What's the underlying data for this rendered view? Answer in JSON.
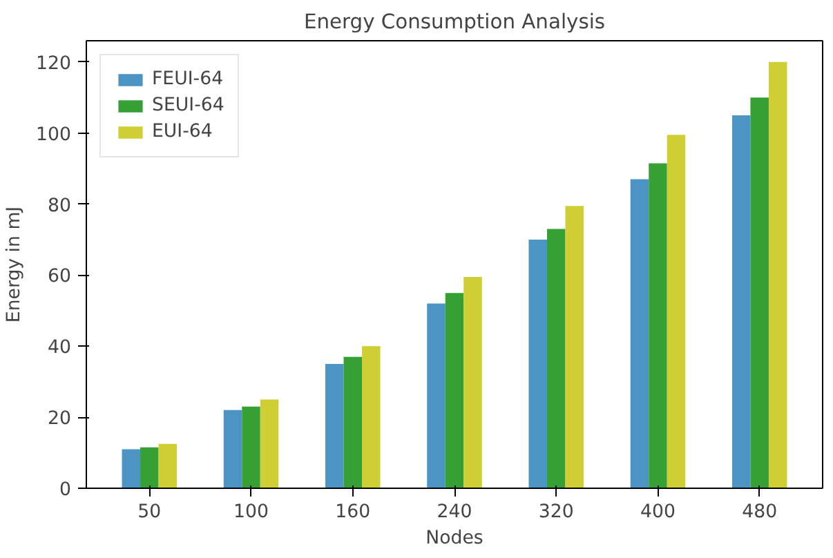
{
  "chart_data": {
    "type": "bar",
    "title": "Energy Consumption Analysis",
    "xlabel": "Nodes",
    "ylabel": "Energy in mJ",
    "categories": [
      "50",
      "100",
      "160",
      "240",
      "320",
      "400",
      "480"
    ],
    "series": [
      {
        "name": "FEUI-64",
        "color": "#4b94c4",
        "values": [
          11,
          22,
          35,
          52,
          70,
          87,
          105
        ]
      },
      {
        "name": "SEUI-64",
        "color": "#36a035",
        "values": [
          11.5,
          23,
          37,
          55,
          73,
          91.5,
          110
        ]
      },
      {
        "name": "EUI-64",
        "color": "#cfcf35",
        "values": [
          12.5,
          25,
          40,
          59.5,
          79.5,
          99.5,
          120
        ]
      }
    ],
    "ylim": [
      0,
      126
    ],
    "yticks": [
      0,
      20,
      40,
      60,
      80,
      100,
      120
    ],
    "grid": false,
    "legend": "top left"
  }
}
